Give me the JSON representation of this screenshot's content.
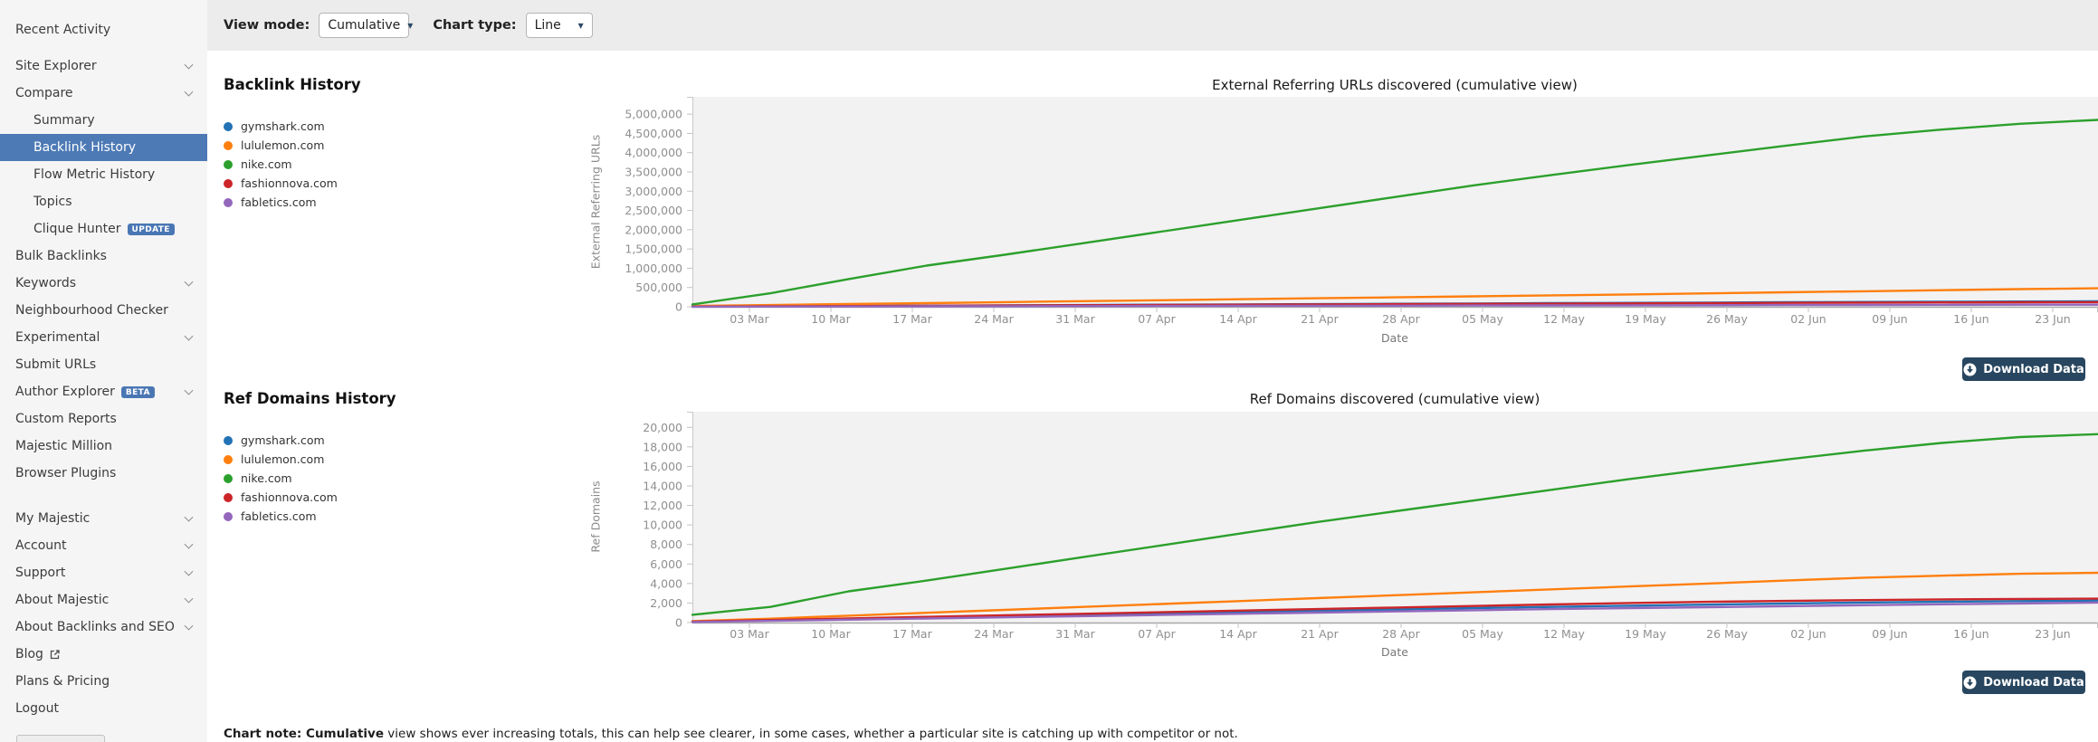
{
  "topbar": {
    "view_mode_label": "View mode:",
    "view_mode_value": "Cumulative",
    "chart_type_label": "Chart type:",
    "chart_type_value": "Line"
  },
  "sidebar": {
    "items": [
      {
        "label": "Recent Activity",
        "level": 0,
        "chevron": false,
        "gap_after": 10
      },
      {
        "label": "Site Explorer",
        "level": 0,
        "chevron": true
      },
      {
        "label": "Compare",
        "level": 0,
        "chevron": true
      },
      {
        "label": "Summary",
        "level": 1
      },
      {
        "label": "Backlink History",
        "level": 1,
        "selected": true
      },
      {
        "label": "Flow Metric History",
        "level": 1
      },
      {
        "label": "Topics",
        "level": 1
      },
      {
        "label": "Clique Hunter",
        "level": 1,
        "badge": "UPDATE"
      },
      {
        "label": "Bulk Backlinks",
        "level": 0
      },
      {
        "label": "Keywords",
        "level": 0,
        "chevron": true
      },
      {
        "label": "Neighbourhood Checker",
        "level": 0
      },
      {
        "label": "Experimental",
        "level": 0,
        "chevron": true
      },
      {
        "label": "Submit URLs",
        "level": 0
      },
      {
        "label": "Author Explorer",
        "level": 0,
        "badge": "BETA",
        "chevron": true
      },
      {
        "label": "Custom Reports",
        "level": 0
      },
      {
        "label": "Majestic Million",
        "level": 0
      },
      {
        "label": "Browser Plugins",
        "level": 0,
        "gap_after": 20
      },
      {
        "label": "My Majestic",
        "level": 0,
        "chevron": true
      },
      {
        "label": "Account",
        "level": 0,
        "chevron": true
      },
      {
        "label": "Support",
        "level": 0,
        "chevron": true
      },
      {
        "label": "About Majestic",
        "level": 0,
        "chevron": true
      },
      {
        "label": "About Backlinks and SEO",
        "level": 0,
        "chevron": true
      },
      {
        "label": "Blog",
        "level": 0,
        "external": true
      },
      {
        "label": "Plans & Pricing",
        "level": 0
      },
      {
        "label": "Logout",
        "level": 0
      }
    ]
  },
  "sections": [
    {
      "heading": "Backlink History",
      "download_label": "Download Data"
    },
    {
      "heading": "Ref Domains History",
      "download_label": "Download Data"
    }
  ],
  "note": {
    "bold": "Chart note: Cumulative",
    "rest": " view shows ever increasing totals, this can help see clearer, in some cases, whether a particular site is catching up with competitor or not."
  },
  "ui_colors": {
    "sidebar_selected_bg": "#4d7ab5",
    "badge_bg": "#4a77b4",
    "download_button_bg": "#28465f",
    "topbar_bg": "#ececec",
    "plot_bg": "#f2f2f2"
  },
  "chart_data": [
    {
      "type": "line",
      "title": "External Referring URLs discovered (cumulative view)",
      "xlabel": "Date",
      "ylabel": "External Referring URLs",
      "grid": false,
      "legend_position": "left",
      "ylim": [
        0,
        5450000
      ],
      "yticks": [
        0,
        500000,
        1000000,
        1500000,
        2000000,
        2500000,
        3000000,
        3500000,
        4000000,
        4500000,
        5000000
      ],
      "xticklabels": [
        "03 Mar",
        "10 Mar",
        "17 Mar",
        "24 Mar",
        "31 Mar",
        "07 Apr",
        "14 Apr",
        "21 Apr",
        "28 Apr",
        "05 May",
        "12 May",
        "19 May",
        "26 May",
        "02 Jun",
        "09 Jun",
        "16 Jun",
        "23 Jun"
      ],
      "series": [
        {
          "name": "gymshark.com",
          "color": "#2272b5",
          "values": [
            5000,
            13000,
            21000,
            29000,
            37000,
            45000,
            53000,
            61000,
            69000,
            77000,
            85000,
            93000,
            101000,
            109000,
            117000,
            124000,
            130000,
            136000,
            140000
          ]
        },
        {
          "name": "lululemon.com",
          "color": "#ff7f0e",
          "values": [
            20000,
            45000,
            70000,
            95000,
            120000,
            145000,
            170000,
            195000,
            220000,
            245000,
            270000,
            295000,
            320000,
            348000,
            375000,
            402000,
            430000,
            458000,
            480000
          ]
        },
        {
          "name": "nike.com",
          "color": "#2ca02c",
          "values": [
            60000,
            350000,
            720000,
            1070000,
            1350000,
            1650000,
            1950000,
            2250000,
            2550000,
            2850000,
            3150000,
            3420000,
            3680000,
            3930000,
            4180000,
            4420000,
            4600000,
            4750000,
            4850000
          ]
        },
        {
          "name": "fashionnova.com",
          "color": "#cc2529",
          "values": [
            4000,
            11000,
            18000,
            25000,
            32000,
            39000,
            46000,
            53000,
            60000,
            67000,
            74000,
            81000,
            88000,
            95000,
            101000,
            107000,
            112000,
            117000,
            120000
          ]
        },
        {
          "name": "fabletics.com",
          "color": "#9467bd",
          "values": [
            2000,
            5000,
            8000,
            11000,
            14000,
            17000,
            20000,
            23000,
            26000,
            29000,
            32000,
            35000,
            38000,
            41000,
            44000,
            47000,
            50000,
            53000,
            55000
          ]
        }
      ]
    },
    {
      "type": "line",
      "title": "Ref Domains discovered (cumulative view)",
      "xlabel": "Date",
      "ylabel": "Ref Domains",
      "grid": false,
      "legend_position": "left",
      "ylim": [
        0,
        21600
      ],
      "yticks": [
        0,
        2000,
        4000,
        6000,
        8000,
        10000,
        12000,
        14000,
        16000,
        18000,
        20000
      ],
      "xticklabels": [
        "03 Mar",
        "10 Mar",
        "17 Mar",
        "24 Mar",
        "31 Mar",
        "07 Apr",
        "14 Apr",
        "21 Apr",
        "28 Apr",
        "05 May",
        "12 May",
        "19 May",
        "26 May",
        "02 Jun",
        "09 Jun",
        "16 Jun",
        "23 Jun"
      ],
      "series": [
        {
          "name": "gymshark.com",
          "color": "#2272b5",
          "values": [
            80,
            220,
            360,
            500,
            640,
            780,
            920,
            1060,
            1200,
            1340,
            1480,
            1600,
            1720,
            1840,
            1950,
            2050,
            2130,
            2200,
            2250
          ]
        },
        {
          "name": "lululemon.com",
          "color": "#ff7f0e",
          "values": [
            150,
            400,
            700,
            1000,
            1300,
            1600,
            1900,
            2200,
            2500,
            2800,
            3100,
            3400,
            3700,
            4000,
            4300,
            4600,
            4800,
            5000,
            5100
          ]
        },
        {
          "name": "nike.com",
          "color": "#2ca02c",
          "values": [
            800,
            1600,
            3200,
            4300,
            5500,
            6700,
            7900,
            9100,
            10300,
            11400,
            12500,
            13600,
            14700,
            15700,
            16700,
            17600,
            18400,
            19000,
            19300
          ]
        },
        {
          "name": "fashionnova.com",
          "color": "#cc2529",
          "values": [
            100,
            260,
            420,
            580,
            740,
            900,
            1060,
            1220,
            1380,
            1540,
            1700,
            1850,
            2000,
            2120,
            2220,
            2300,
            2370,
            2420,
            2450
          ]
        },
        {
          "name": "fabletics.com",
          "color": "#9467bd",
          "values": [
            60,
            180,
            300,
            420,
            540,
            660,
            780,
            900,
            1020,
            1140,
            1260,
            1380,
            1480,
            1580,
            1680,
            1780,
            1870,
            1960,
            2050
          ]
        }
      ]
    }
  ]
}
